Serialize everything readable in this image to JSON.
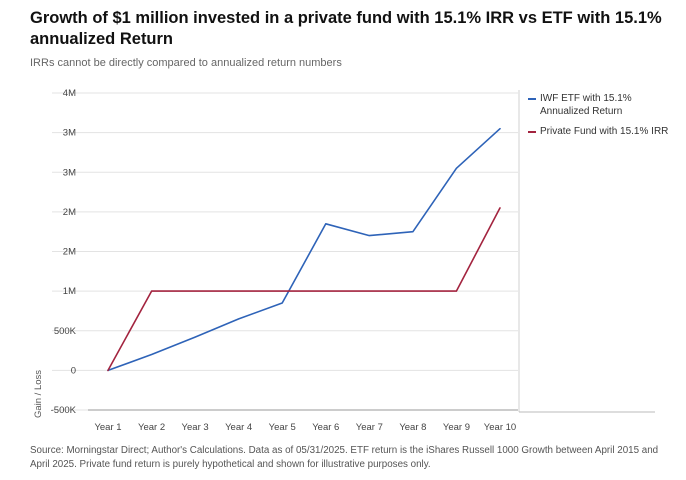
{
  "header": {
    "title": "Growth of $1 million invested in a private fund with 15.1% IRR vs ETF with 15.1% annualized Return",
    "subtitle": "IRRs cannot be directly compared to annualized return numbers"
  },
  "footer": {
    "source": "Source: Morningstar Direct; Author's Calculations. Data as of 05/31/2025. ETF return is the iShares Russell 1000 Growth between April 2015 and April 2025. Private fund return is purely hypothetical and shown for illustrative purposes only."
  },
  "chart_data": {
    "type": "line",
    "title": "Growth of $1 million invested in a private fund with 15.1% IRR vs ETF with 15.1% annualized Return",
    "subtitle": "IRRs cannot be directly compared to annualized return numbers",
    "xlabel": "",
    "ylabel": "Gain / Loss",
    "categories": [
      "Year 1",
      "Year 2",
      "Year 3",
      "Year 4",
      "Year 5",
      "Year 6",
      "Year 7",
      "Year 8",
      "Year 9",
      "Year 10"
    ],
    "y_ticks": [
      -500000,
      0,
      500000,
      1000000,
      1500000,
      2000000,
      2500000,
      3000000,
      3500000
    ],
    "y_tick_labels": [
      "-500K",
      "0",
      "500K",
      "1M",
      "2M",
      "2M",
      "3M",
      "3M",
      "4M"
    ],
    "ylim": [
      -500000,
      3500000
    ],
    "grid": true,
    "legend_position": "right",
    "series": [
      {
        "name": "IWF ETF with 15.1% Annualized Return",
        "color": "#2e63b8",
        "values": [
          0,
          200000,
          420000,
          650000,
          850000,
          1850000,
          1700000,
          1750000,
          2550000,
          3050000
        ]
      },
      {
        "name": "Private Fund with 15.1% IRR",
        "color": "#a3243f",
        "values": [
          0,
          1000000,
          1000000,
          1000000,
          1000000,
          1000000,
          1000000,
          1000000,
          1000000,
          2050000
        ]
      }
    ]
  }
}
